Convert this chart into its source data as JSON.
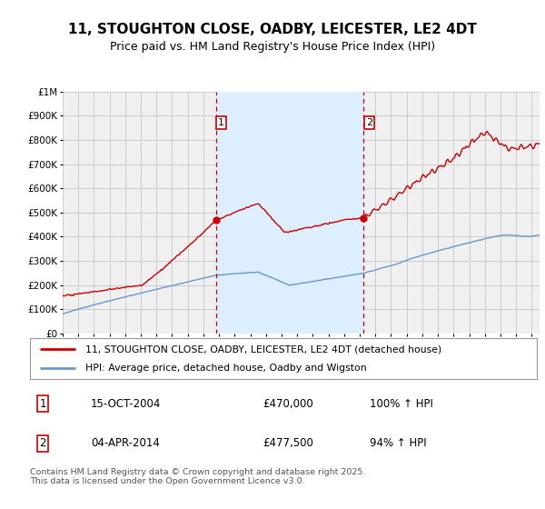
{
  "title": "11, STOUGHTON CLOSE, OADBY, LEICESTER, LE2 4DT",
  "subtitle": "Price paid vs. HM Land Registry's House Price Index (HPI)",
  "legend_line1": "11, STOUGHTON CLOSE, OADBY, LEICESTER, LE2 4DT (detached house)",
  "legend_line2": "HPI: Average price, detached house, Oadby and Wigston",
  "footnote": "Contains HM Land Registry data © Crown copyright and database right 2025.\nThis data is licensed under the Open Government Licence v3.0.",
  "purchase1_date": "15-OCT-2004",
  "purchase1_price": "£470,000",
  "purchase1_hpi": "100% ↑ HPI",
  "purchase2_date": "04-APR-2014",
  "purchase2_price": "£477,500",
  "purchase2_hpi": "94% ↑ HPI",
  "red_line_color": "#cc0000",
  "blue_line_color": "#6699cc",
  "shade_color": "#ddeeff",
  "vline_color": "#cc0000",
  "grid_color": "#cccccc",
  "plot_bg_color": "#f0f0f0",
  "title_fontsize": 11,
  "subtitle_fontsize": 9,
  "marker_box_color": "#cc0000",
  "ylim": [
    0,
    1000000
  ],
  "year_start": 1995,
  "year_end": 2025.5,
  "vline1_year": 2004.79,
  "vline2_year": 2014.25,
  "marker1_year": 2004.79,
  "marker1_value": 470000,
  "marker2_year": 2014.25,
  "marker2_value": 477500,
  "yticks": [
    0,
    100000,
    200000,
    300000,
    400000,
    500000,
    600000,
    700000,
    800000,
    900000,
    1000000
  ],
  "yticklabels": [
    "£0",
    "£100K",
    "£200K",
    "£300K",
    "£400K",
    "£500K",
    "£600K",
    "£700K",
    "£800K",
    "£900K",
    "£1M"
  ]
}
